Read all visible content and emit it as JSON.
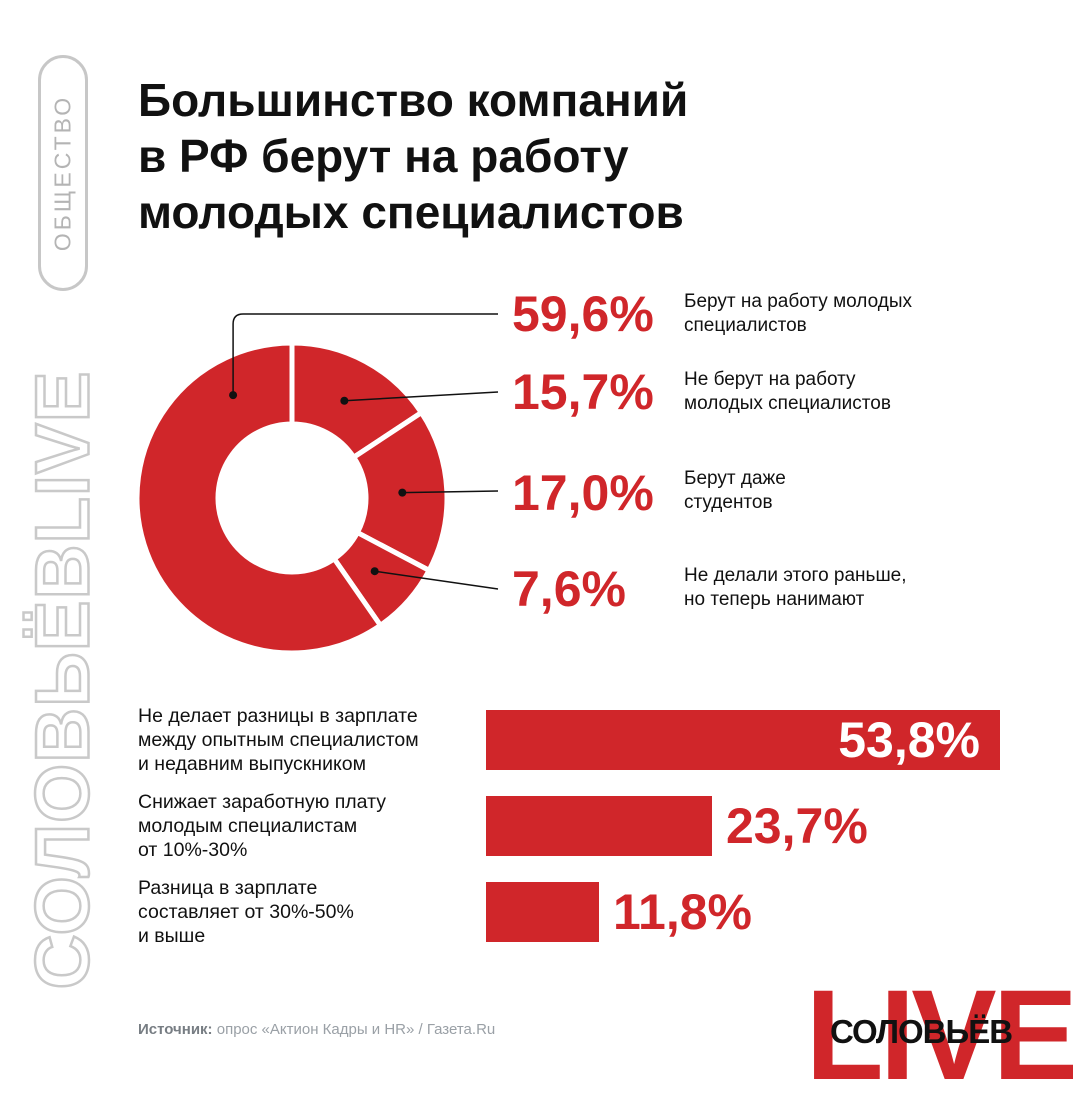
{
  "category": "ОБЩЕСТВО",
  "side_brand": "СОЛОВЬЁВLIVE",
  "title": {
    "lines": [
      "Большинство компаний",
      "в РФ берут на работу",
      "молодых специалистов"
    ]
  },
  "colors": {
    "accent": "#d0262a",
    "text": "#111111",
    "muted": "#9aa0a6",
    "outline_gray": "#c9c9c9"
  },
  "chart_data": [
    {
      "type": "pie",
      "donut": true,
      "slices": [
        {
          "label_lines": [
            "Берут на работу молодых",
            "специалистов"
          ],
          "value": 59.6,
          "display": "59,6%"
        },
        {
          "label_lines": [
            "Не берут на работу",
            "молодых специалистов"
          ],
          "value": 15.7,
          "display": "15,7%"
        },
        {
          "label_lines": [
            "Берут даже",
            "студентов"
          ],
          "value": 17.0,
          "display": "17,0%"
        },
        {
          "label_lines": [
            "Не делали этого раньше,",
            "но теперь нанимают"
          ],
          "value": 7.6,
          "display": "7,6%"
        }
      ]
    },
    {
      "type": "bar",
      "orientation": "horizontal",
      "bars": [
        {
          "label_lines": [
            "Не делает разницы в зарплате",
            "между опытным специалистом",
            "и недавним выпускником"
          ],
          "value": 53.8,
          "display": "53,8%"
        },
        {
          "label_lines": [
            "Снижает заработную плату",
            "молодым специалистам",
            "от 10%-30%"
          ],
          "value": 23.7,
          "display": "23,7%"
        },
        {
          "label_lines": [
            "Разница в зарплате",
            "составляет от 30%-50%",
            "и выше"
          ],
          "value": 11.8,
          "display": "11,8%"
        }
      ]
    }
  ],
  "source": {
    "label": "Источник:",
    "text": " опрос «Актион Кадры и HR» / Газета.Ru"
  },
  "logo": {
    "live": "LIVE",
    "name": "СОЛОВЬЁВ"
  }
}
